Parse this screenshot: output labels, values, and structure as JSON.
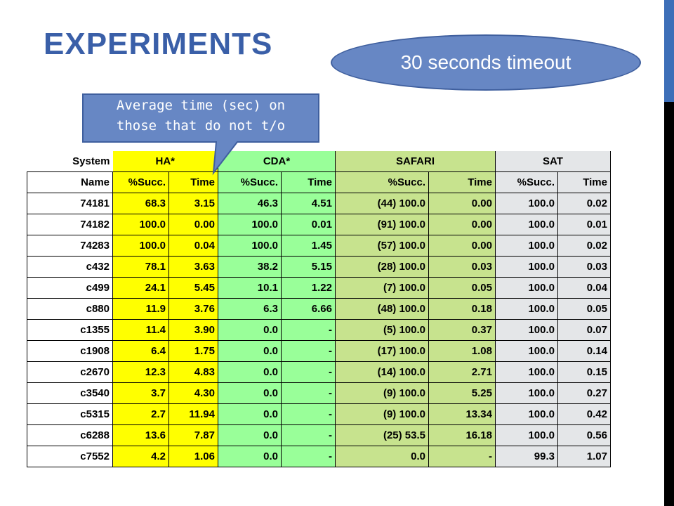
{
  "slide": {
    "title": "EXPERIMENTS",
    "timeout_callout": "30 seconds timeout",
    "note_callout_line1": "Average time (sec) on",
    "note_callout_line2": "those that do not t/o",
    "accent_color": "#3a5fa8"
  },
  "table": {
    "corner_label": "System",
    "groups": [
      "HA*",
      "CDA*",
      "SAFARI",
      "SAT"
    ],
    "header": [
      "Name",
      "%Succ.",
      "Time",
      "%Succ.",
      "Time",
      "%Succ.",
      "Time",
      "%Succ.",
      "Time"
    ],
    "rows": [
      [
        "74181",
        "68.3",
        "3.15",
        "46.3",
        "4.51",
        "(44) 100.0",
        "0.00",
        "100.0",
        "0.02"
      ],
      [
        "74182",
        "100.0",
        "0.00",
        "100.0",
        "0.01",
        "(91) 100.0",
        "0.00",
        "100.0",
        "0.01"
      ],
      [
        "74283",
        "100.0",
        "0.04",
        "100.0",
        "1.45",
        "(57) 100.0",
        "0.00",
        "100.0",
        "0.02"
      ],
      [
        "c432",
        "78.1",
        "3.63",
        "38.2",
        "5.15",
        "(28) 100.0",
        "0.03",
        "100.0",
        "0.03"
      ],
      [
        "c499",
        "24.1",
        "5.45",
        "10.1",
        "1.22",
        "(7) 100.0",
        "0.05",
        "100.0",
        "0.04"
      ],
      [
        "c880",
        "11.9",
        "3.76",
        "6.3",
        "6.66",
        "(48) 100.0",
        "0.18",
        "100.0",
        "0.05"
      ],
      [
        "c1355",
        "11.4",
        "3.90",
        "0.0",
        "-",
        "(5) 100.0",
        "0.37",
        "100.0",
        "0.07"
      ],
      [
        "c1908",
        "6.4",
        "1.75",
        "0.0",
        "-",
        "(17) 100.0",
        "1.08",
        "100.0",
        "0.14"
      ],
      [
        "c2670",
        "12.3",
        "4.83",
        "0.0",
        "-",
        "(14) 100.0",
        "2.71",
        "100.0",
        "0.15"
      ],
      [
        "c3540",
        "3.7",
        "4.30",
        "0.0",
        "-",
        "(9) 100.0",
        "5.25",
        "100.0",
        "0.27"
      ],
      [
        "c5315",
        "2.7",
        "11.94",
        "0.0",
        "-",
        "(9) 100.0",
        "13.34",
        "100.0",
        "0.42"
      ],
      [
        "c6288",
        "13.6",
        "7.87",
        "0.0",
        "-",
        "(25) 53.5",
        "16.18",
        "100.0",
        "0.56"
      ],
      [
        "c7552",
        "4.2",
        "1.06",
        "0.0",
        "-",
        "0.0",
        "-",
        "99.3",
        "1.07"
      ]
    ]
  }
}
